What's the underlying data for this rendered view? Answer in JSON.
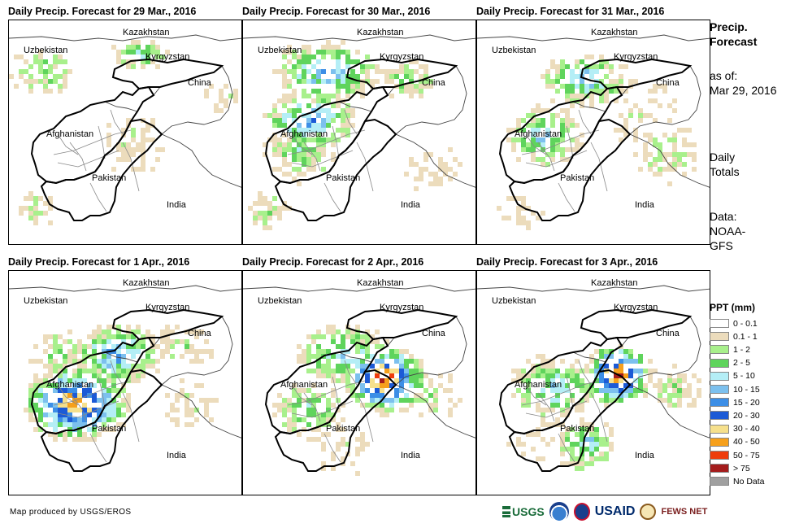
{
  "panels": [
    {
      "title": "Daily Precip. Forecast for 29 Mar., 2016"
    },
    {
      "title": "Daily Precip. Forecast for 30 Mar., 2016"
    },
    {
      "title": "Daily Precip. Forecast for 31 Mar., 2016"
    },
    {
      "title": "Daily Precip. Forecast for 1 Apr., 2016"
    },
    {
      "title": "Daily Precip. Forecast for 2 Apr., 2016"
    },
    {
      "title": "Daily Precip. Forecast for 3 Apr., 2016"
    }
  ],
  "countries": {
    "kazakhstan": "Kazakhstan",
    "uzbekistan": "Uzbekistan",
    "kyrgyzstan": "Kyrgyzstan",
    "china": "China",
    "afghanistan": "Afghanistan",
    "pakistan": "Pakistan",
    "india": "India"
  },
  "sidebar": {
    "title_line1": "Precip.",
    "title_line2": "Forecast",
    "asof_line1": "as of:",
    "asof_line2": "Mar 29, 2016",
    "daily_line1": "Daily",
    "daily_line2": "Totals",
    "data_line1": "Data:",
    "data_line2": "NOAA-",
    "data_line3": "GFS"
  },
  "legend": {
    "title": "PPT (mm)",
    "items": [
      {
        "label": "0 - 0.1",
        "color": "#ffffff"
      },
      {
        "label": "0.1 - 1",
        "color": "#ecdcbc"
      },
      {
        "label": "1 - 2",
        "color": "#a8f08c"
      },
      {
        "label": "2 - 5",
        "color": "#5fd45c"
      },
      {
        "label": "5 - 10",
        "color": "#b4eef6"
      },
      {
        "label": "10 - 15",
        "color": "#7cc0ee"
      },
      {
        "label": "15 - 20",
        "color": "#3c8ee6"
      },
      {
        "label": "20 - 30",
        "color": "#1c5ad6"
      },
      {
        "label": "30 - 40",
        "color": "#f6e08c"
      },
      {
        "label": "40 - 50",
        "color": "#f6a01c"
      },
      {
        "label": "50 - 75",
        "color": "#ee3c0c"
      },
      {
        "label": "> 75",
        "color": "#a41c1c"
      },
      {
        "label": "No Data",
        "color": "#a0a0a0"
      }
    ]
  },
  "credit": "Map produced by USGS/EROS",
  "logos": {
    "usgs": "USGS",
    "usaid": "USAID",
    "fewsnet": "FEWS NET"
  }
}
